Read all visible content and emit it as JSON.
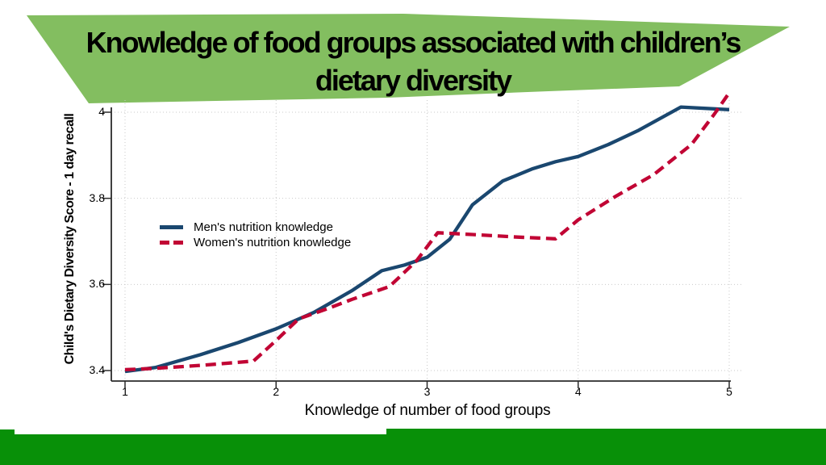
{
  "slide": {
    "title_line1": "Knowledge of food groups associated with children’s",
    "title_line2": "dietary diversity"
  },
  "colors": {
    "title_banner_green": "#83BE60",
    "footer_green": "#089008",
    "men_line_blue": "#1a476f",
    "women_line_red": "#c10534",
    "gridline_gray": "#c9c9c9",
    "axis_dark": "#2b2b2b"
  },
  "chart_data": {
    "type": "line",
    "title": "",
    "xlabel": "Knowledge of number of food groups",
    "ylabel": "Child's Dietary Diversity Score - 1 day recall",
    "xlim": [
      1,
      5
    ],
    "ylim": [
      3.4,
      4.0
    ],
    "grid": "dotted",
    "legend_position": "inside-upper-left",
    "x_ticks": [
      {
        "value": 1,
        "label": "1"
      },
      {
        "value": 2,
        "label": "2"
      },
      {
        "value": 3,
        "label": "3"
      },
      {
        "value": 4,
        "label": "4"
      },
      {
        "value": 5,
        "label": "5"
      }
    ],
    "y_ticks": [
      {
        "value": 4.0,
        "label": "4"
      },
      {
        "value": 3.8,
        "label": "3.8"
      },
      {
        "value": 3.6,
        "label": "3.6"
      },
      {
        "value": 3.4,
        "label": "3.4"
      }
    ],
    "series": [
      {
        "name": "Men's nutrition knowledge",
        "color": "#1a476f",
        "style": "solid",
        "points": [
          [
            1,
            3.398
          ],
          [
            1.2,
            3.407
          ],
          [
            1.5,
            3.437
          ],
          [
            1.75,
            3.465
          ],
          [
            2,
            3.497
          ],
          [
            2.25,
            3.535
          ],
          [
            2.5,
            3.585
          ],
          [
            2.7,
            3.632
          ],
          [
            2.85,
            3.645
          ],
          [
            3,
            3.663
          ],
          [
            3.15,
            3.705
          ],
          [
            3.3,
            3.785
          ],
          [
            3.5,
            3.84
          ],
          [
            3.7,
            3.869
          ],
          [
            3.85,
            3.885
          ],
          [
            4,
            3.897
          ],
          [
            4.2,
            3.925
          ],
          [
            4.4,
            3.958
          ],
          [
            4.68,
            4.012
          ],
          [
            5,
            4.006
          ]
        ]
      },
      {
        "name": "Women's nutrition knowledge",
        "color": "#c10534",
        "style": "dashed",
        "points": [
          [
            1,
            3.402
          ],
          [
            1.2,
            3.405
          ],
          [
            1.5,
            3.412
          ],
          [
            1.85,
            3.422
          ],
          [
            2,
            3.47
          ],
          [
            2.15,
            3.52
          ],
          [
            2.35,
            3.545
          ],
          [
            2.5,
            3.565
          ],
          [
            2.75,
            3.595
          ],
          [
            2.93,
            3.655
          ],
          [
            3.07,
            3.72
          ],
          [
            3.3,
            3.716
          ],
          [
            3.6,
            3.71
          ],
          [
            3.85,
            3.706
          ],
          [
            4,
            3.75
          ],
          [
            4.25,
            3.805
          ],
          [
            4.5,
            3.855
          ],
          [
            4.75,
            3.925
          ],
          [
            4.9,
            3.995
          ],
          [
            5,
            4.045
          ]
        ]
      }
    ]
  }
}
